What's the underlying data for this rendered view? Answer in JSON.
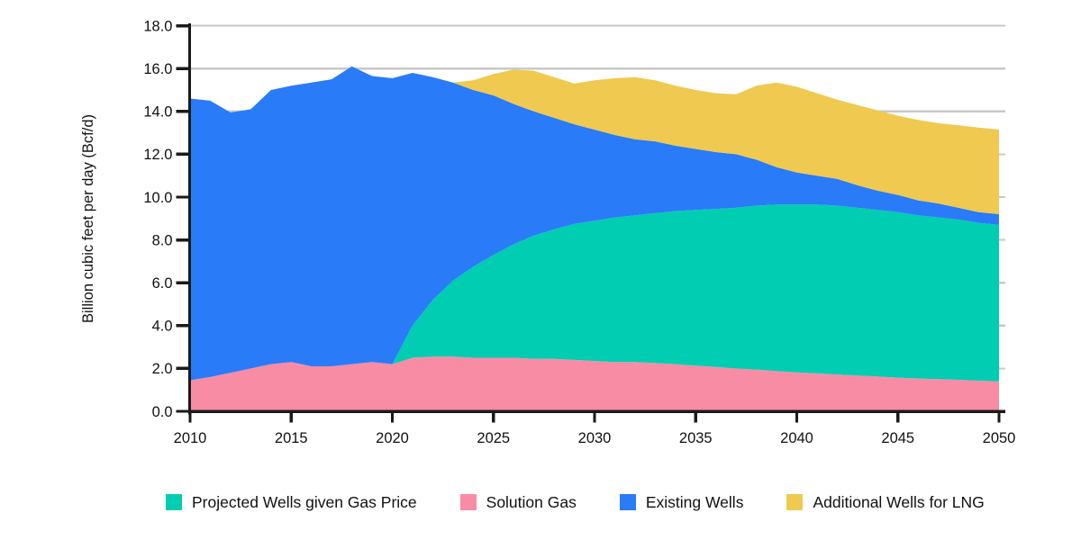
{
  "figure": {
    "background": "#ffffff",
    "axis_color": "#1a1a1a",
    "gridline_color": "#c9c9c9",
    "text_color": "#111111"
  },
  "chart_data": {
    "type": "area",
    "stacked": true,
    "title": "",
    "xlabel": "",
    "ylabel": "Billion cubic feet per day (Bcf/d)",
    "xlim": [
      2010,
      2050
    ],
    "ylim": [
      0,
      18
    ],
    "grid": "horizontal",
    "xticks": [
      "2010",
      "2015",
      "2020",
      "2025",
      "2030",
      "2035",
      "2040",
      "2045",
      "2050"
    ],
    "xtick_values": [
      2010,
      2015,
      2020,
      2025,
      2030,
      2035,
      2040,
      2045,
      2050
    ],
    "ytick_labels": [
      "0.0",
      "2.0",
      "4.0",
      "6.0",
      "8.0",
      "10.0",
      "12.0",
      "14.0",
      "16.0",
      "18.0"
    ],
    "ytick_values": [
      0,
      2,
      4,
      6,
      8,
      10,
      12,
      14,
      16,
      18
    ],
    "x": [
      2010,
      2011,
      2012,
      2013,
      2014,
      2015,
      2016,
      2017,
      2018,
      2019,
      2020,
      2021,
      2022,
      2023,
      2024,
      2025,
      2026,
      2027,
      2028,
      2029,
      2030,
      2031,
      2032,
      2033,
      2034,
      2035,
      2036,
      2037,
      2038,
      2039,
      2040,
      2041,
      2042,
      2043,
      2044,
      2045,
      2046,
      2047,
      2048,
      2049,
      2050
    ],
    "series": [
      {
        "name": "Solution Gas",
        "color": "#F98CA5",
        "values": [
          1.45,
          1.6,
          1.8,
          2.0,
          2.2,
          2.3,
          2.1,
          2.1,
          2.2,
          2.3,
          2.2,
          2.5,
          2.55,
          2.55,
          2.5,
          2.5,
          2.5,
          2.45,
          2.45,
          2.4,
          2.35,
          2.3,
          2.3,
          2.25,
          2.2,
          2.13,
          2.07,
          2.0,
          1.95,
          1.88,
          1.82,
          1.77,
          1.72,
          1.67,
          1.62,
          1.57,
          1.53,
          1.5,
          1.47,
          1.43,
          1.4
        ]
      },
      {
        "name": "Projected Wells given Gas Price",
        "color": "#00CDB2",
        "values": [
          0,
          0,
          0,
          0,
          0,
          0,
          0,
          0,
          0,
          0,
          0,
          1.5,
          2.65,
          3.55,
          4.25,
          4.8,
          5.3,
          5.75,
          6.05,
          6.35,
          6.55,
          6.75,
          6.85,
          7.0,
          7.15,
          7.27,
          7.38,
          7.5,
          7.65,
          7.77,
          7.83,
          7.88,
          7.88,
          7.83,
          7.78,
          7.73,
          7.62,
          7.55,
          7.48,
          7.37,
          7.3
        ]
      },
      {
        "name": "Existing Wells",
        "color": "#2A7BF8",
        "values": [
          13.15,
          12.9,
          12.15,
          12.1,
          12.8,
          12.9,
          13.25,
          13.4,
          13.9,
          13.35,
          13.35,
          11.8,
          10.4,
          9.25,
          8.25,
          7.45,
          6.55,
          5.8,
          5.2,
          4.65,
          4.25,
          3.85,
          3.55,
          3.35,
          3.05,
          2.85,
          2.65,
          2.5,
          2.15,
          1.75,
          1.5,
          1.35,
          1.25,
          1.05,
          0.9,
          0.8,
          0.7,
          0.65,
          0.55,
          0.5,
          0.5
        ]
      },
      {
        "name": "Additional Wells for LNG",
        "color": "#EFC950",
        "values": [
          0,
          0,
          0,
          0,
          0,
          0,
          0,
          0,
          0,
          0,
          0,
          0,
          0,
          0,
          0.45,
          1.0,
          1.6,
          1.9,
          1.9,
          1.9,
          2.3,
          2.65,
          2.9,
          2.85,
          2.8,
          2.75,
          2.75,
          2.8,
          3.45,
          3.95,
          4.0,
          3.85,
          3.7,
          3.75,
          3.75,
          3.7,
          3.75,
          3.75,
          3.85,
          3.95,
          3.95
        ]
      }
    ],
    "legend": {
      "position": "bottom",
      "items": [
        {
          "label": "Projected Wells given Gas Price",
          "color": "#00CDB2"
        },
        {
          "label": "Solution Gas",
          "color": "#F98CA5"
        },
        {
          "label": "Existing Wells",
          "color": "#2A7BF8"
        },
        {
          "label": "Additional Wells for LNG",
          "color": "#EFC950"
        }
      ]
    }
  }
}
